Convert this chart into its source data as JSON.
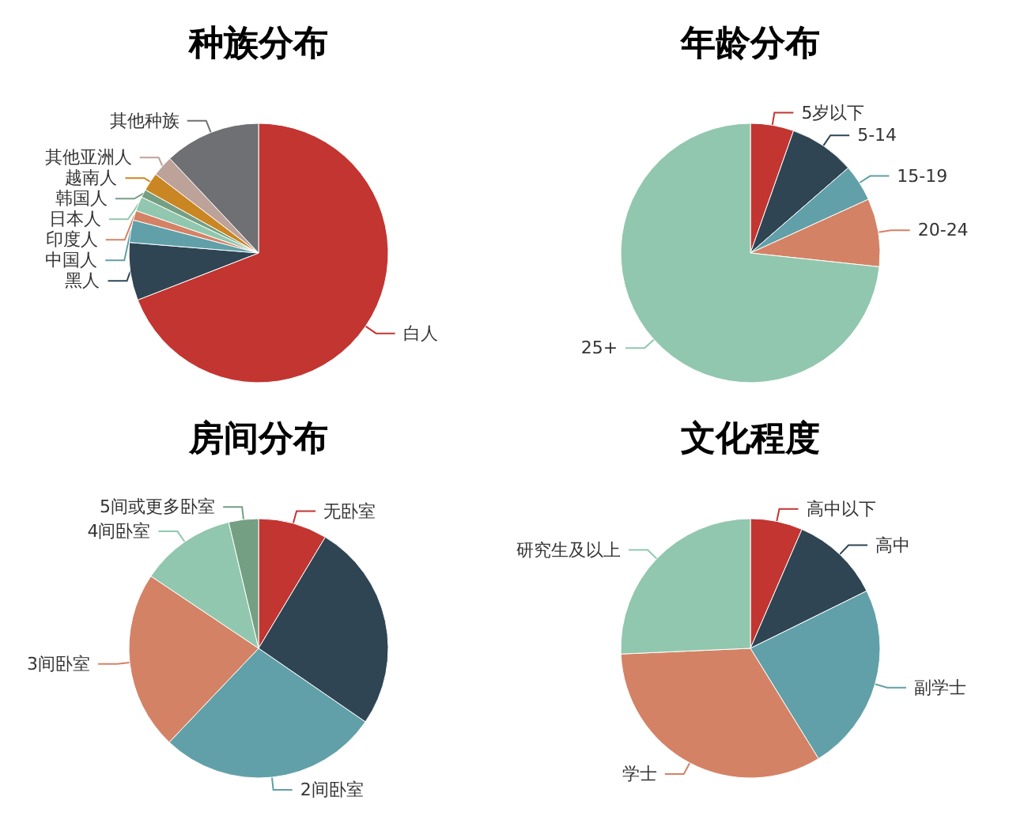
{
  "chart_data": [
    {
      "type": "pie",
      "title": "种族分布",
      "categories": [
        "白人",
        "黑人",
        "中国人",
        "印度人",
        "日本人",
        "韩国人",
        "越南人",
        "其他亚洲人",
        "其他种族"
      ],
      "values": [
        69.1,
        7.2,
        2.8,
        1.2,
        1.8,
        1,
        2.3,
        2.6,
        12
      ],
      "colors": [
        "#c23531",
        "#2f4554",
        "#61a0a8",
        "#d48265",
        "#91c7ae",
        "#749f83",
        "#ca8622",
        "#bda29a",
        "#6e7074"
      ]
    },
    {
      "type": "pie",
      "title": "年龄分布",
      "categories": [
        "5岁以下",
        "5-14",
        "15-19",
        "20-24",
        "25+"
      ],
      "values": [
        5.4,
        8.2,
        4.6,
        8.5,
        73.3
      ],
      "colors": [
        "#c23531",
        "#2f4554",
        "#61a0a8",
        "#d48265",
        "#91c7ae"
      ]
    },
    {
      "type": "pie",
      "title": "房间分布",
      "categories": [
        "无卧室",
        null,
        "2间卧室",
        "3间卧室",
        "4间卧室",
        "5间或更多卧室"
      ],
      "values": [
        8.6,
        26,
        27.5,
        22.3,
        11.9,
        3.7
      ],
      "colors": [
        "#c23531",
        "#2f4554",
        "#61a0a8",
        "#d48265",
        "#91c7ae",
        "#749f83"
      ]
    },
    {
      "type": "pie",
      "title": "文化程度",
      "categories": [
        "高中以下",
        "高中",
        "副学士",
        "学士",
        "研究生及以上"
      ],
      "values": [
        6.5,
        11.2,
        23.5,
        33.1,
        25.7
      ],
      "colors": [
        "#c23531",
        "#2f4554",
        "#61a0a8",
        "#d48265",
        "#91c7ae"
      ]
    }
  ]
}
